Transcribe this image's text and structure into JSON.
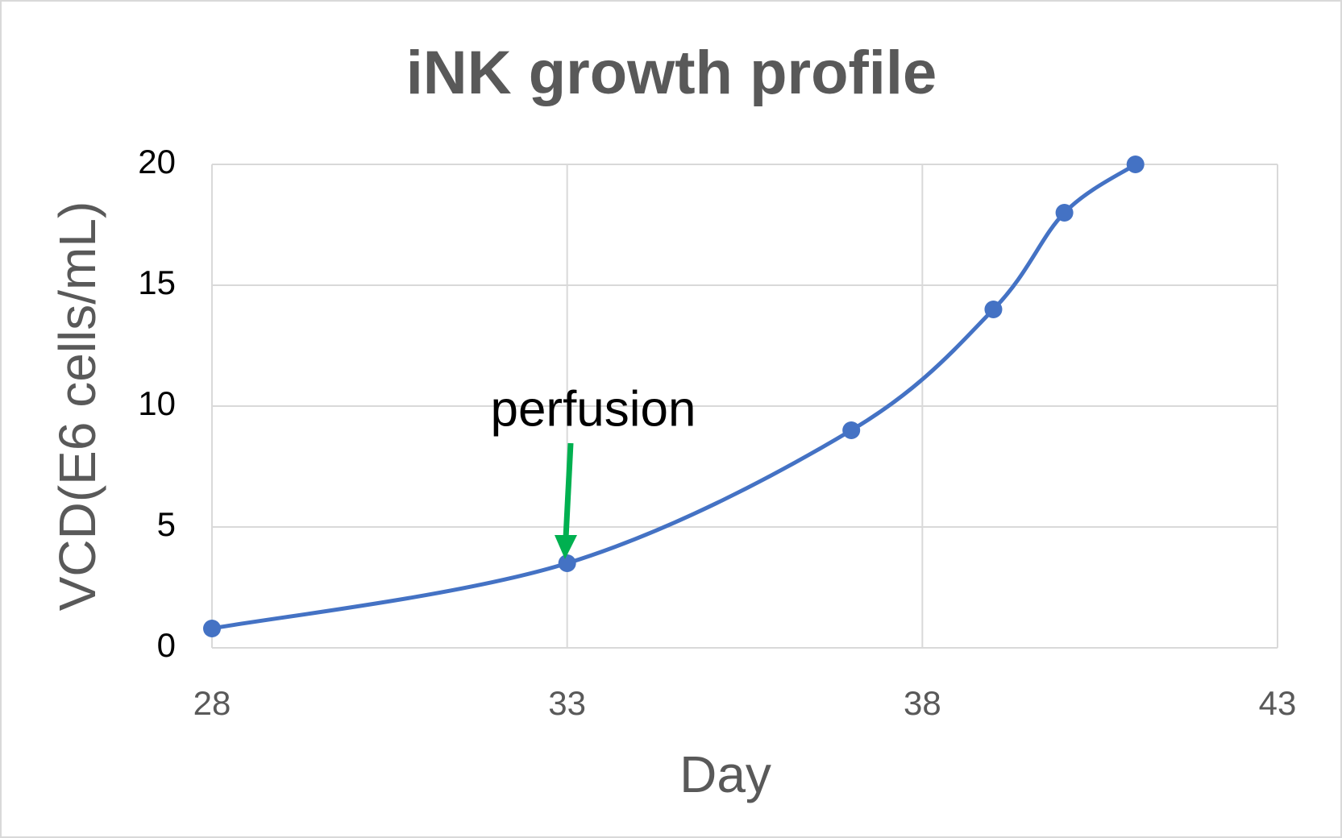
{
  "chart_data": {
    "type": "line",
    "title": "iNK growth profile",
    "x_label": "Day",
    "y_label": "VCD(E6 cells/mL)",
    "annotation": "perfusion",
    "series": [
      {
        "color": "#4472c4",
        "x": [
          28,
          33,
          37,
          39,
          40,
          41
        ],
        "values": [
          0.8,
          3.5,
          9,
          14,
          18,
          20
        ]
      }
    ],
    "smooth": true,
    "xlim": [
      28,
      43
    ],
    "xticks": [
      28,
      33,
      38,
      43
    ],
    "ylim": [
      0,
      20
    ],
    "yticks": [
      0,
      5,
      10,
      15,
      20
    ],
    "grid": true
  }
}
